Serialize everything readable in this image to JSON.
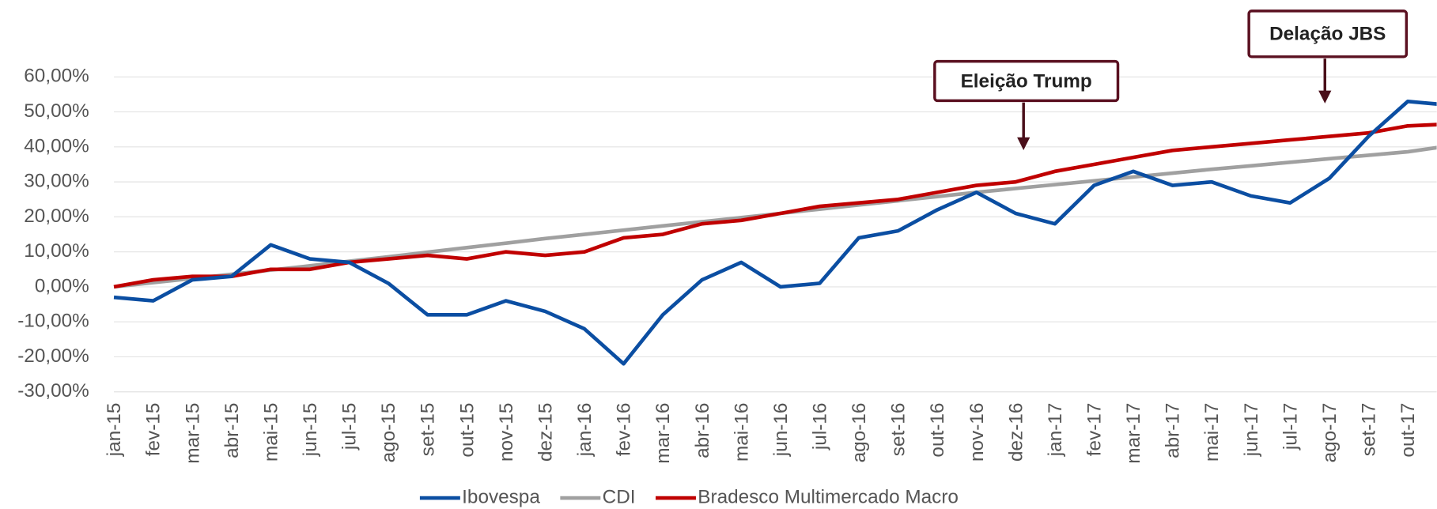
{
  "chart_data": {
    "type": "line",
    "categories": [
      "jan-15",
      "fev-15",
      "mar-15",
      "abr-15",
      "mai-15",
      "jun-15",
      "jul-15",
      "ago-15",
      "set-15",
      "out-15",
      "nov-15",
      "dez-15",
      "jan-16",
      "fev-16",
      "mar-16",
      "abr-16",
      "mai-16",
      "jun-16",
      "jul-16",
      "ago-16",
      "set-16",
      "out-16",
      "nov-16",
      "dez-16",
      "jan-17",
      "fev-17",
      "mar-17",
      "abr-17",
      "mai-17",
      "jun-17",
      "jul-17",
      "ago-17",
      "set-17",
      "out-17",
      null
    ],
    "series": [
      {
        "name": "Ibovespa",
        "color": "#0b4ea2",
        "values": [
          -3,
          -4,
          2,
          3,
          12,
          8,
          7,
          1,
          -8,
          -8,
          -4,
          -7,
          -12,
          -22,
          -8,
          2,
          7,
          0,
          1,
          14,
          16,
          22,
          27,
          21,
          18,
          29,
          33,
          29,
          30,
          26,
          24,
          31,
          43,
          53,
          52
        ]
      },
      {
        "name": "CDI",
        "color": "#a0a0a0",
        "values": [
          0,
          1.2,
          2.4,
          3.6,
          4.8,
          6,
          7.3,
          8.6,
          9.9,
          11.2,
          12.5,
          13.8,
          15,
          16.2,
          17.4,
          18.6,
          19.8,
          21,
          22.2,
          23.4,
          24.6,
          25.8,
          27,
          28.1,
          29.2,
          30.3,
          31.4,
          32.5,
          33.6,
          34.6,
          35.6,
          36.6,
          37.6,
          38.6,
          40.2
        ]
      },
      {
        "name": "Bradesco Multimercado Macro",
        "color": "#c00000",
        "values": [
          0,
          2,
          3,
          3,
          5,
          5,
          7,
          8,
          9,
          8,
          10,
          9,
          10,
          14,
          15,
          18,
          19,
          21,
          23,
          24,
          25,
          27,
          29,
          30,
          33,
          35,
          37,
          39,
          40,
          41,
          42,
          43,
          44,
          46,
          46.5
        ]
      }
    ],
    "ylim": [
      -30,
      60
    ],
    "yticks": [
      {
        "value": -30,
        "label": "-30,00%"
      },
      {
        "value": -20,
        "label": "-20,00%"
      },
      {
        "value": -10,
        "label": "-10,00%"
      },
      {
        "value": 0,
        "label": "0,00%"
      },
      {
        "value": 10,
        "label": "10,00%"
      },
      {
        "value": 20,
        "label": "20,00%"
      },
      {
        "value": 30,
        "label": "30,00%"
      },
      {
        "value": 40,
        "label": "40,00%"
      },
      {
        "value": 50,
        "label": "50,00%"
      },
      {
        "value": 60,
        "label": "60,00%"
      }
    ],
    "grid": true,
    "legend": "bottom",
    "annotations": [
      {
        "text": "Eleição Trump"
      },
      {
        "text": "Delação JBS"
      }
    ]
  }
}
